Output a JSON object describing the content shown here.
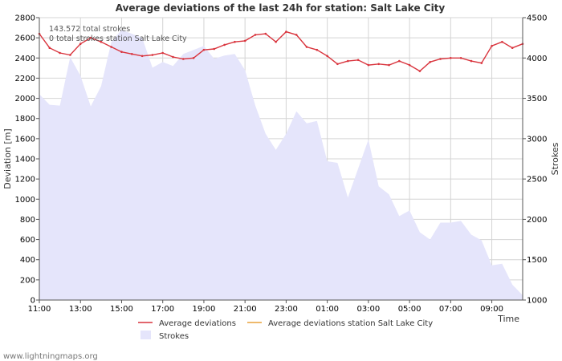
{
  "chart_data": {
    "type": "line",
    "title": "Average deviations of the last 24h for station: Salt Lake City",
    "xlabel": "Time",
    "ylabel": "Deviation  [m]",
    "y2label": "Strokes",
    "ylim": [
      0,
      2800
    ],
    "y2lim": [
      1000,
      4500
    ],
    "yticks": [
      0,
      200,
      400,
      600,
      800,
      1000,
      1200,
      1400,
      1600,
      1800,
      2000,
      2200,
      2400,
      2600,
      2800
    ],
    "y2ticks": [
      1000,
      1500,
      2000,
      2500,
      3000,
      3500,
      4000,
      4500
    ],
    "xlim": [
      0,
      23.5
    ],
    "xticks": [
      {
        "h": 0,
        "label": "11:00"
      },
      {
        "h": 2,
        "label": "13:00"
      },
      {
        "h": 4,
        "label": "15:00"
      },
      {
        "h": 6,
        "label": "17:00"
      },
      {
        "h": 8,
        "label": "19:00"
      },
      {
        "h": 10,
        "label": "21:00"
      },
      {
        "h": 12,
        "label": "23:00"
      },
      {
        "h": 14,
        "label": "01:00"
      },
      {
        "h": 16,
        "label": "03:00"
      },
      {
        "h": 18,
        "label": "05:00"
      },
      {
        "h": 20,
        "label": "07:00"
      },
      {
        "h": 22,
        "label": "09:00"
      }
    ],
    "annotations": [
      "143.572 total strokes",
      "0 total strokes station Salt Lake City"
    ],
    "series": [
      {
        "name": "Average deviations",
        "axis": "left",
        "color": "#d9343d",
        "x": [
          0,
          0.5,
          1,
          1.5,
          2,
          2.5,
          3,
          3.5,
          4,
          4.5,
          5,
          5.5,
          6,
          6.5,
          7,
          7.5,
          8,
          8.5,
          9,
          9.5,
          10,
          10.5,
          11,
          11.5,
          12,
          12.5,
          13,
          13.5,
          14,
          14.5,
          15,
          15.5,
          16,
          16.5,
          17,
          17.5,
          18,
          18.5,
          19,
          19.5,
          20,
          20.5,
          21,
          21.5,
          22,
          22.5,
          23,
          23.5
        ],
        "values": [
          2640,
          2500,
          2450,
          2430,
          2540,
          2600,
          2560,
          2510,
          2460,
          2440,
          2420,
          2430,
          2450,
          2410,
          2390,
          2400,
          2480,
          2490,
          2530,
          2560,
          2570,
          2630,
          2640,
          2560,
          2660,
          2630,
          2510,
          2480,
          2420,
          2340,
          2370,
          2380,
          2330,
          2340,
          2330,
          2370,
          2330,
          2270,
          2360,
          2390,
          2400,
          2400,
          2370,
          2350,
          2520,
          2560,
          2500,
          2540
        ]
      },
      {
        "name": "Average deviations station Salt Lake City",
        "axis": "left",
        "color": "#e8a23c",
        "x": [],
        "values": []
      },
      {
        "name": "Strokes",
        "axis": "right",
        "type": "area",
        "color": "#e5e5fb",
        "x": [
          0,
          0.5,
          1,
          1.5,
          2,
          2.5,
          3,
          3.5,
          4,
          4.5,
          5,
          5.5,
          6,
          6.5,
          7,
          7.5,
          8,
          8.5,
          9,
          9.5,
          10,
          10.5,
          11,
          11.5,
          12,
          12.5,
          13,
          13.5,
          14,
          14.5,
          15,
          15.5,
          16,
          16.5,
          17,
          17.5,
          18,
          18.5,
          19,
          19.5,
          20,
          20.5,
          21,
          21.5,
          22,
          22.5,
          23,
          23.5
        ],
        "values": [
          3550,
          3420,
          3410,
          4010,
          3780,
          3400,
          3650,
          4200,
          4350,
          4300,
          4250,
          3880,
          3950,
          3900,
          4050,
          4100,
          4150,
          3990,
          4030,
          4050,
          3850,
          3410,
          3060,
          2860,
          3060,
          3340,
          3190,
          3220,
          2720,
          2700,
          2270,
          2630,
          2990,
          2410,
          2310,
          2040,
          2110,
          1840,
          1750,
          1960,
          1960,
          1980,
          1810,
          1740,
          1430,
          1450,
          1190,
          1060
        ]
      }
    ]
  },
  "footer": "www.lightningmaps.org"
}
